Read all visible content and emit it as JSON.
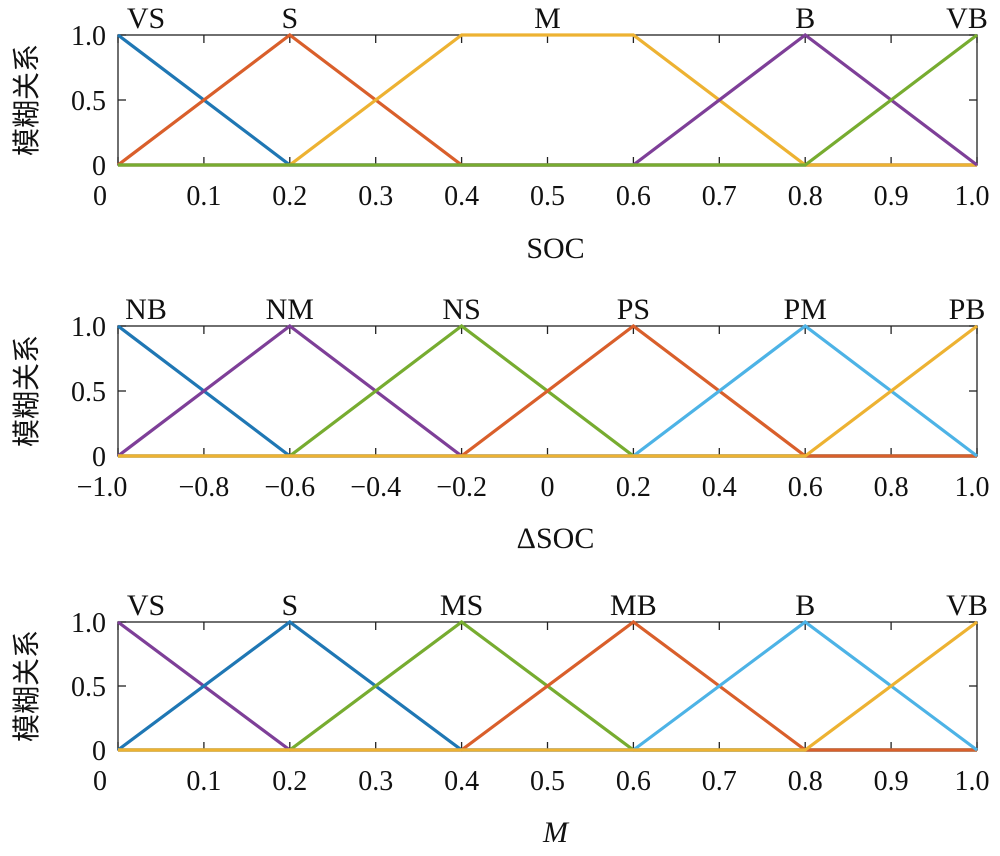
{
  "chart_data": [
    {
      "type": "line",
      "title": "",
      "xlabel": "SOC",
      "ylabel": "模糊关系",
      "xlim": [
        0,
        1
      ],
      "ylim": [
        0,
        1
      ],
      "xticks": [
        "0",
        "0.1",
        "0.2",
        "0.3",
        "0.4",
        "0.5",
        "0.6",
        "0.7",
        "0.8",
        "0.9",
        "1.0"
      ],
      "yticks": [
        "0",
        "0.5",
        "1.0"
      ],
      "grid": false,
      "series": [
        {
          "name": "VS",
          "color": "#1f77b4",
          "x": [
            0,
            0.2,
            1.0
          ],
          "y": [
            1,
            0,
            0
          ]
        },
        {
          "name": "S",
          "color": "#d95f2b",
          "x": [
            0,
            0.2,
            0.4,
            1.0
          ],
          "y": [
            0,
            1,
            0,
            0
          ]
        },
        {
          "name": "M",
          "color": "#edb232",
          "x": [
            0,
            0.2,
            0.4,
            0.6,
            0.8,
            1.0
          ],
          "y": [
            0,
            0,
            1,
            1,
            0,
            0
          ]
        },
        {
          "name": "B",
          "color": "#7e3f98",
          "x": [
            0,
            0.6,
            0.8,
            1.0
          ],
          "y": [
            0,
            0,
            1,
            0
          ]
        },
        {
          "name": "VB",
          "color": "#77ac30",
          "x": [
            0,
            0.8,
            1.0
          ],
          "y": [
            0,
            0,
            1
          ]
        }
      ]
    },
    {
      "type": "line",
      "title": "",
      "xlabel": "ΔSOC",
      "ylabel": "模糊关系",
      "xlim": [
        -1,
        1
      ],
      "ylim": [
        0,
        1
      ],
      "xticks": [
        "−1.0",
        "−0.8",
        "−0.6",
        "−0.4",
        "−0.2",
        "0",
        "0.2",
        "0.4",
        "0.6",
        "0.8",
        "1.0"
      ],
      "yticks": [
        "0",
        "0.5",
        "1.0"
      ],
      "grid": false,
      "series": [
        {
          "name": "NB",
          "color": "#1f77b4",
          "x": [
            -1.0,
            -0.6,
            1.0
          ],
          "y": [
            1,
            0,
            0
          ]
        },
        {
          "name": "NM",
          "color": "#7e3f98",
          "x": [
            -1.0,
            -0.6,
            -0.2,
            1.0
          ],
          "y": [
            0,
            1,
            0,
            0
          ]
        },
        {
          "name": "NS",
          "color": "#77ac30",
          "x": [
            -1.0,
            -0.6,
            -0.2,
            0.2,
            1.0
          ],
          "y": [
            0,
            0,
            1,
            0,
            0
          ]
        },
        {
          "name": "PS",
          "color": "#d95f2b",
          "x": [
            -1.0,
            -0.2,
            0.2,
            0.6,
            1.0
          ],
          "y": [
            0,
            0,
            1,
            0,
            0
          ]
        },
        {
          "name": "PM",
          "color": "#4db3e6",
          "x": [
            -1.0,
            0.2,
            0.6,
            1.0
          ],
          "y": [
            0,
            0,
            1,
            0
          ]
        },
        {
          "name": "PB",
          "color": "#edb232",
          "x": [
            -1.0,
            0.6,
            1.0
          ],
          "y": [
            0,
            0,
            1
          ]
        }
      ]
    },
    {
      "type": "line",
      "title": "",
      "xlabel": "M",
      "ylabel": "模糊关系",
      "xlim": [
        0,
        1
      ],
      "ylim": [
        0,
        1
      ],
      "xticks": [
        "0",
        "0.1",
        "0.2",
        "0.3",
        "0.4",
        "0.5",
        "0.6",
        "0.7",
        "0.8",
        "0.9",
        "1.0"
      ],
      "yticks": [
        "0",
        "0.5",
        "1.0"
      ],
      "grid": false,
      "series": [
        {
          "name": "VS",
          "color": "#7e3f98",
          "x": [
            0,
            0.2,
            1.0
          ],
          "y": [
            1,
            0,
            0
          ]
        },
        {
          "name": "S",
          "color": "#1f77b4",
          "x": [
            0,
            0.2,
            0.4,
            1.0
          ],
          "y": [
            0,
            1,
            0,
            0
          ]
        },
        {
          "name": "MS",
          "color": "#77ac30",
          "x": [
            0,
            0.2,
            0.4,
            0.6,
            1.0
          ],
          "y": [
            0,
            0,
            1,
            0,
            0
          ]
        },
        {
          "name": "MB",
          "color": "#d95f2b",
          "x": [
            0,
            0.4,
            0.6,
            0.8,
            1.0
          ],
          "y": [
            0,
            0,
            1,
            0,
            0
          ]
        },
        {
          "name": "B",
          "color": "#4db3e6",
          "x": [
            0,
            0.6,
            0.8,
            1.0
          ],
          "y": [
            0,
            0,
            1,
            0
          ]
        },
        {
          "name": "VB",
          "color": "#edb232",
          "x": [
            0,
            0.8,
            1.0
          ],
          "y": [
            0,
            0,
            1
          ]
        }
      ]
    }
  ]
}
